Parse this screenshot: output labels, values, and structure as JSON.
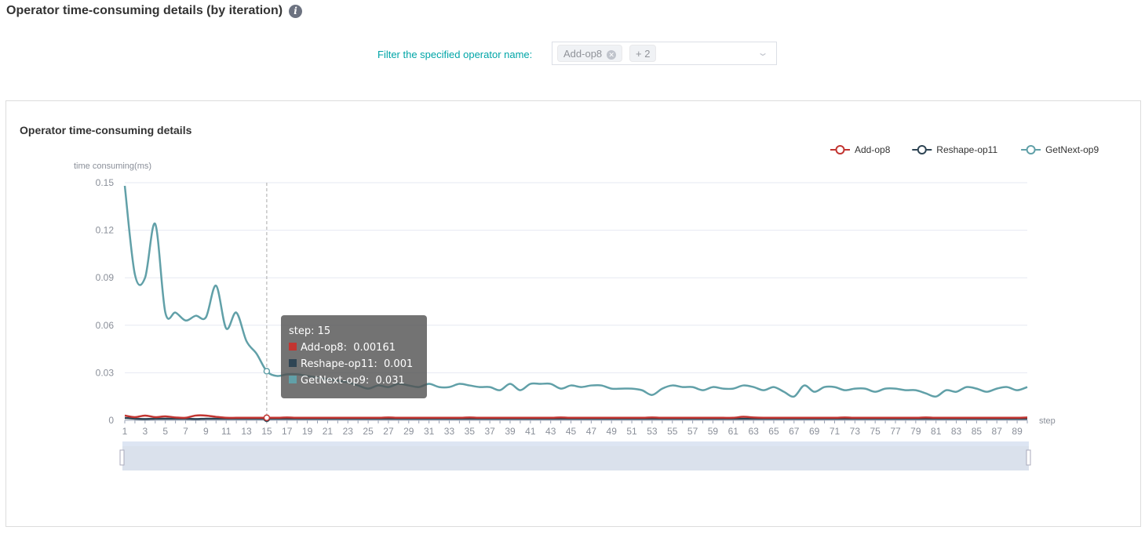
{
  "header": {
    "title": "Operator time-consuming details (by iteration)",
    "info_icon": "info-icon"
  },
  "filter": {
    "label": "Filter the specified operator name:",
    "tags": [
      "Add-op8",
      "+ 2"
    ]
  },
  "chart_data": {
    "type": "line",
    "title": "Operator time-consuming details",
    "ylabel": "time consuming(ms)",
    "xlabel": "step",
    "ylim": [
      0,
      0.15
    ],
    "yticks": [
      "0",
      "0.03",
      "0.06",
      "0.09",
      "0.12",
      "0.15"
    ],
    "grid": true,
    "legend": "top-right",
    "x": [
      1,
      2,
      3,
      4,
      5,
      6,
      7,
      8,
      9,
      10,
      11,
      12,
      13,
      14,
      15,
      16,
      17,
      18,
      19,
      20,
      21,
      22,
      23,
      24,
      25,
      26,
      27,
      28,
      29,
      30,
      31,
      32,
      33,
      34,
      35,
      36,
      37,
      38,
      39,
      40,
      41,
      42,
      43,
      44,
      45,
      46,
      47,
      48,
      49,
      50,
      51,
      52,
      53,
      54,
      55,
      56,
      57,
      58,
      59,
      60,
      61,
      62,
      63,
      64,
      65,
      66,
      67,
      68,
      69,
      70,
      71,
      72,
      73,
      74,
      75,
      76,
      77,
      78,
      79,
      80,
      81,
      82,
      83,
      84,
      85,
      86,
      87,
      88,
      89,
      90
    ],
    "series": [
      {
        "name": "Add-op8",
        "color": "#c23531",
        "values": [
          0.003,
          0.002,
          0.003,
          0.002,
          0.0025,
          0.0018,
          0.0016,
          0.003,
          0.003,
          0.0022,
          0.0016,
          0.0016,
          0.0016,
          0.0016,
          0.00161,
          0.0016,
          0.0018,
          0.0016,
          0.0016,
          0.0016,
          0.0016,
          0.0016,
          0.0016,
          0.0016,
          0.0016,
          0.0016,
          0.0018,
          0.0016,
          0.0016,
          0.0016,
          0.0016,
          0.0016,
          0.0016,
          0.0016,
          0.0018,
          0.0016,
          0.0016,
          0.0016,
          0.0016,
          0.0016,
          0.0016,
          0.0016,
          0.0016,
          0.0018,
          0.0016,
          0.0016,
          0.0016,
          0.0016,
          0.0016,
          0.0016,
          0.0016,
          0.0016,
          0.0018,
          0.0016,
          0.0016,
          0.0016,
          0.0016,
          0.0016,
          0.0016,
          0.0016,
          0.0016,
          0.0022,
          0.0018,
          0.0016,
          0.0016,
          0.0016,
          0.0016,
          0.0016,
          0.0016,
          0.0016,
          0.0016,
          0.0018,
          0.0016,
          0.0016,
          0.0016,
          0.0016,
          0.0016,
          0.0016,
          0.0016,
          0.0018,
          0.0016,
          0.0016,
          0.0016,
          0.0016,
          0.0016,
          0.0016,
          0.0016,
          0.0016,
          0.0016,
          0.0018
        ]
      },
      {
        "name": "Reshape-op11",
        "color": "#2f4554",
        "values": [
          0.0015,
          0.001,
          0.0008,
          0.001,
          0.001,
          0.001,
          0.001,
          0.0008,
          0.001,
          0.001,
          0.001,
          0.001,
          0.001,
          0.001,
          0.001,
          0.001,
          0.001,
          0.001,
          0.001,
          0.001,
          0.001,
          0.001,
          0.001,
          0.001,
          0.001,
          0.001,
          0.001,
          0.001,
          0.001,
          0.001,
          0.001,
          0.001,
          0.001,
          0.001,
          0.001,
          0.001,
          0.001,
          0.001,
          0.001,
          0.001,
          0.001,
          0.001,
          0.001,
          0.001,
          0.001,
          0.001,
          0.001,
          0.001,
          0.001,
          0.001,
          0.001,
          0.001,
          0.001,
          0.001,
          0.001,
          0.001,
          0.001,
          0.001,
          0.001,
          0.001,
          0.001,
          0.001,
          0.001,
          0.001,
          0.001,
          0.001,
          0.001,
          0.001,
          0.001,
          0.001,
          0.001,
          0.001,
          0.001,
          0.001,
          0.001,
          0.001,
          0.001,
          0.001,
          0.001,
          0.001,
          0.001,
          0.001,
          0.001,
          0.001,
          0.001,
          0.001,
          0.001,
          0.001,
          0.001,
          0.001
        ]
      },
      {
        "name": "GetNext-op9",
        "color": "#61a0a8",
        "values": [
          0.148,
          0.092,
          0.09,
          0.124,
          0.068,
          0.068,
          0.063,
          0.066,
          0.065,
          0.085,
          0.058,
          0.068,
          0.05,
          0.042,
          0.031,
          0.028,
          0.029,
          0.029,
          0.028,
          0.027,
          0.026,
          0.025,
          0.024,
          0.022,
          0.02,
          0.022,
          0.021,
          0.023,
          0.022,
          0.021,
          0.023,
          0.021,
          0.021,
          0.023,
          0.022,
          0.021,
          0.021,
          0.019,
          0.023,
          0.019,
          0.023,
          0.023,
          0.023,
          0.02,
          0.022,
          0.021,
          0.022,
          0.022,
          0.02,
          0.02,
          0.02,
          0.019,
          0.016,
          0.02,
          0.022,
          0.021,
          0.021,
          0.019,
          0.021,
          0.02,
          0.02,
          0.022,
          0.021,
          0.019,
          0.021,
          0.018,
          0.015,
          0.022,
          0.018,
          0.021,
          0.021,
          0.019,
          0.02,
          0.02,
          0.018,
          0.02,
          0.02,
          0.019,
          0.019,
          0.017,
          0.015,
          0.019,
          0.018,
          0.021,
          0.02,
          0.018,
          0.02,
          0.021,
          0.019,
          0.021
        ]
      }
    ],
    "tooltip": {
      "title": "step: 15",
      "rows": [
        {
          "name": "Add-op8:",
          "value": "0.00161"
        },
        {
          "name": "Reshape-op11:",
          "value": "0.001"
        },
        {
          "name": "GetNext-op9:",
          "value": "0.031"
        }
      ]
    }
  }
}
